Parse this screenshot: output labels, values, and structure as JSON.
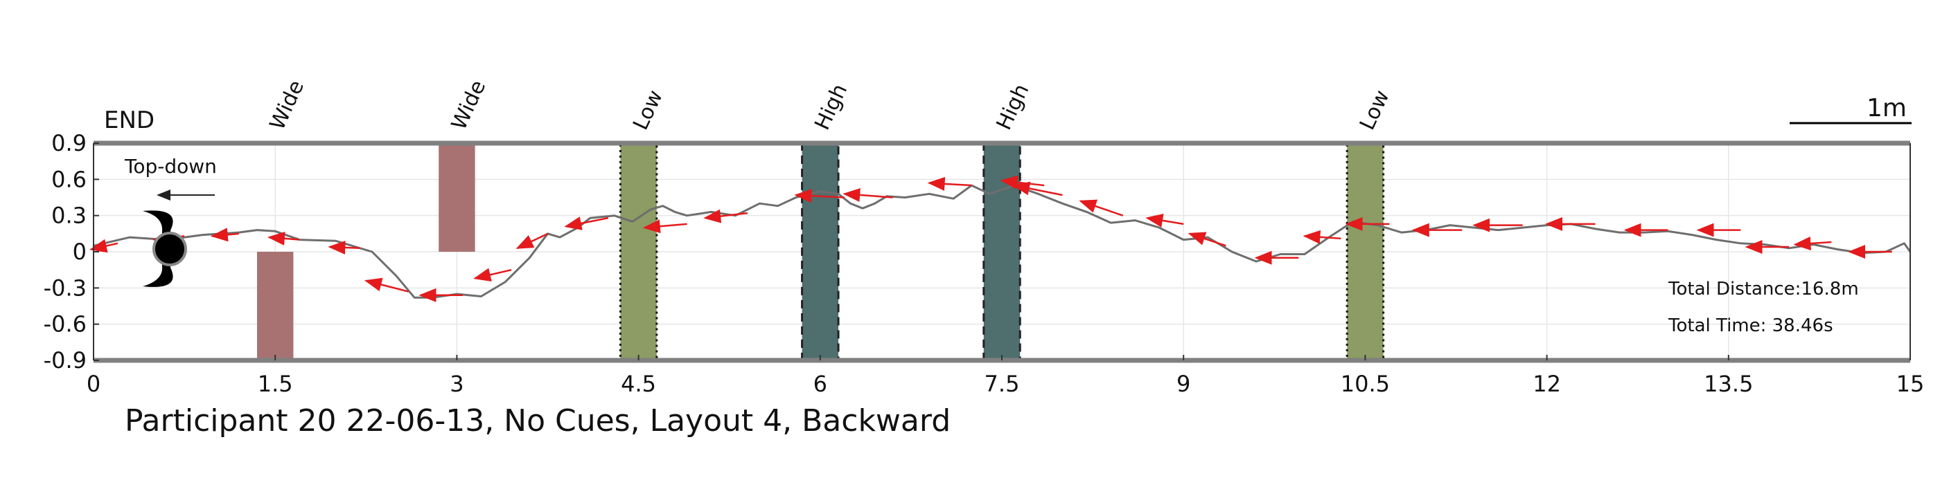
{
  "chart_data": {
    "type": "line",
    "title": "Participant 20 22-06-13, No Cues, Layout 4, Backward",
    "xlim": [
      0,
      15
    ],
    "ylim": [
      -0.9,
      0.9
    ],
    "xticks": [
      "0",
      "1.5",
      "3",
      "4.5",
      "6",
      "7.5",
      "9",
      "10.5",
      "12",
      "13.5",
      "15"
    ],
    "yticks": [
      "0.9",
      "0.6",
      "0.3",
      "0",
      "-0.3",
      "-0.6",
      "-0.9"
    ],
    "grid": true,
    "end_label": "END",
    "view_label": "Top-down",
    "scale_label": "1m",
    "stats": {
      "distance": "Total Distance:16.8m",
      "time": "Total Time: 38.46s"
    },
    "colors": {
      "path": "#6e6e6e",
      "heading_arrow": "#e41a1c",
      "wide": "#a97272",
      "low": "#8c9c64",
      "high": "#4f6e6e",
      "axis": "#808080"
    },
    "obstacles": [
      {
        "label": "Wide",
        "kind": "wide",
        "x": [
          1.35,
          1.65
        ],
        "y": [
          -0.9,
          0.0
        ]
      },
      {
        "label": "Wide",
        "kind": "wide",
        "x": [
          2.85,
          3.15
        ],
        "y": [
          0.0,
          0.9
        ]
      },
      {
        "label": "Low",
        "kind": "low",
        "x": [
          4.35,
          4.65
        ],
        "y": [
          -0.9,
          0.9
        ]
      },
      {
        "label": "High",
        "kind": "high",
        "x": [
          5.85,
          6.15
        ],
        "y": [
          -0.9,
          0.9
        ]
      },
      {
        "label": "High",
        "kind": "high",
        "x": [
          7.35,
          7.65
        ],
        "y": [
          -0.9,
          0.9
        ]
      },
      {
        "label": "Low",
        "kind": "low",
        "x": [
          10.35,
          10.65
        ],
        "y": [
          -0.9,
          0.9
        ]
      }
    ],
    "series": [
      {
        "x": [
          0.0,
          0.3,
          0.6,
          0.9,
          1.2,
          1.35,
          1.5,
          1.7,
          2.0,
          2.3,
          2.5,
          2.65,
          2.8,
          3.0,
          3.2,
          3.4,
          3.6,
          3.75,
          3.85,
          4.0,
          4.1,
          4.3,
          4.45,
          4.6,
          4.7,
          4.8,
          4.9,
          5.1,
          5.3,
          5.5,
          5.65,
          5.8,
          6.0,
          6.15,
          6.25,
          6.35,
          6.45,
          6.55,
          6.7,
          6.9,
          7.1,
          7.25,
          7.4,
          7.6,
          7.8,
          8.0,
          8.2,
          8.4,
          8.6,
          8.8,
          9.0,
          9.2,
          9.4,
          9.6,
          9.8,
          10.0,
          10.2,
          10.4,
          10.6,
          10.8,
          11.0,
          11.2,
          11.4,
          11.6,
          11.8,
          12.0,
          12.2,
          12.4,
          12.6,
          12.8,
          13.0,
          13.2,
          13.4,
          13.6,
          13.8,
          14.0,
          14.2,
          14.4,
          14.6,
          14.8,
          14.95,
          15.0
        ],
        "y": [
          0.05,
          0.12,
          0.1,
          0.14,
          0.16,
          0.18,
          0.17,
          0.1,
          0.09,
          0.0,
          -0.2,
          -0.38,
          -0.38,
          -0.35,
          -0.37,
          -0.25,
          -0.05,
          0.15,
          0.12,
          0.2,
          0.28,
          0.3,
          0.25,
          0.35,
          0.38,
          0.33,
          0.3,
          0.33,
          0.3,
          0.4,
          0.38,
          0.45,
          0.5,
          0.48,
          0.4,
          0.36,
          0.4,
          0.46,
          0.45,
          0.48,
          0.44,
          0.55,
          0.48,
          0.55,
          0.48,
          0.4,
          0.33,
          0.24,
          0.26,
          0.2,
          0.1,
          0.12,
          0.0,
          -0.08,
          -0.02,
          -0.02,
          0.12,
          0.25,
          0.22,
          0.16,
          0.18,
          0.22,
          0.2,
          0.18,
          0.2,
          0.22,
          0.23,
          0.19,
          0.16,
          0.16,
          0.17,
          0.14,
          0.1,
          0.07,
          0.06,
          0.03,
          0.06,
          0.02,
          -0.01,
          0.0,
          0.07,
          0.0
        ]
      }
    ],
    "heading_arrows": [
      {
        "x": 0.2,
        "y": 0.07,
        "dx": -0.22,
        "dy": -0.05
      },
      {
        "x": 0.75,
        "y": 0.13,
        "dx": -0.25,
        "dy": -0.03
      },
      {
        "x": 1.2,
        "y": 0.15,
        "dx": -0.22,
        "dy": -0.02
      },
      {
        "x": 1.7,
        "y": 0.1,
        "dx": -0.25,
        "dy": 0.02
      },
      {
        "x": 2.2,
        "y": 0.03,
        "dx": -0.25,
        "dy": 0.01
      },
      {
        "x": 2.6,
        "y": -0.33,
        "dx": -0.35,
        "dy": 0.09
      },
      {
        "x": 3.05,
        "y": -0.36,
        "dx": -0.35,
        "dy": 0.0
      },
      {
        "x": 3.45,
        "y": -0.15,
        "dx": -0.3,
        "dy": -0.07
      },
      {
        "x": 3.75,
        "y": 0.15,
        "dx": -0.25,
        "dy": -0.12
      },
      {
        "x": 4.25,
        "y": 0.28,
        "dx": -0.35,
        "dy": -0.07
      },
      {
        "x": 4.9,
        "y": 0.23,
        "dx": -0.35,
        "dy": -0.03
      },
      {
        "x": 5.4,
        "y": 0.32,
        "dx": -0.35,
        "dy": -0.04
      },
      {
        "x": 6.2,
        "y": 0.45,
        "dx": -0.4,
        "dy": 0.02
      },
      {
        "x": 6.6,
        "y": 0.45,
        "dx": -0.4,
        "dy": 0.03
      },
      {
        "x": 7.25,
        "y": 0.55,
        "dx": -0.35,
        "dy": 0.02
      },
      {
        "x": 7.85,
        "y": 0.55,
        "dx": -0.35,
        "dy": 0.04
      },
      {
        "x": 8.0,
        "y": 0.47,
        "dx": -0.4,
        "dy": 0.08
      },
      {
        "x": 8.5,
        "y": 0.3,
        "dx": -0.35,
        "dy": 0.12
      },
      {
        "x": 9.0,
        "y": 0.23,
        "dx": -0.3,
        "dy": 0.05
      },
      {
        "x": 9.35,
        "y": 0.05,
        "dx": -0.3,
        "dy": 0.1
      },
      {
        "x": 9.95,
        "y": -0.05,
        "dx": -0.35,
        "dy": 0.0
      },
      {
        "x": 10.3,
        "y": 0.11,
        "dx": -0.3,
        "dy": 0.02
      },
      {
        "x": 10.7,
        "y": 0.23,
        "dx": -0.35,
        "dy": 0.0
      },
      {
        "x": 11.3,
        "y": 0.18,
        "dx": -0.4,
        "dy": 0.0
      },
      {
        "x": 11.8,
        "y": 0.22,
        "dx": -0.4,
        "dy": 0.0
      },
      {
        "x": 12.4,
        "y": 0.23,
        "dx": -0.4,
        "dy": 0.0
      },
      {
        "x": 13.0,
        "y": 0.18,
        "dx": -0.35,
        "dy": 0.0
      },
      {
        "x": 13.6,
        "y": 0.18,
        "dx": -0.35,
        "dy": 0.0
      },
      {
        "x": 14.0,
        "y": 0.04,
        "dx": -0.35,
        "dy": 0.0
      },
      {
        "x": 14.35,
        "y": 0.08,
        "dx": -0.3,
        "dy": -0.02
      },
      {
        "x": 14.85,
        "y": 0.0,
        "dx": -0.35,
        "dy": 0.0
      }
    ]
  }
}
